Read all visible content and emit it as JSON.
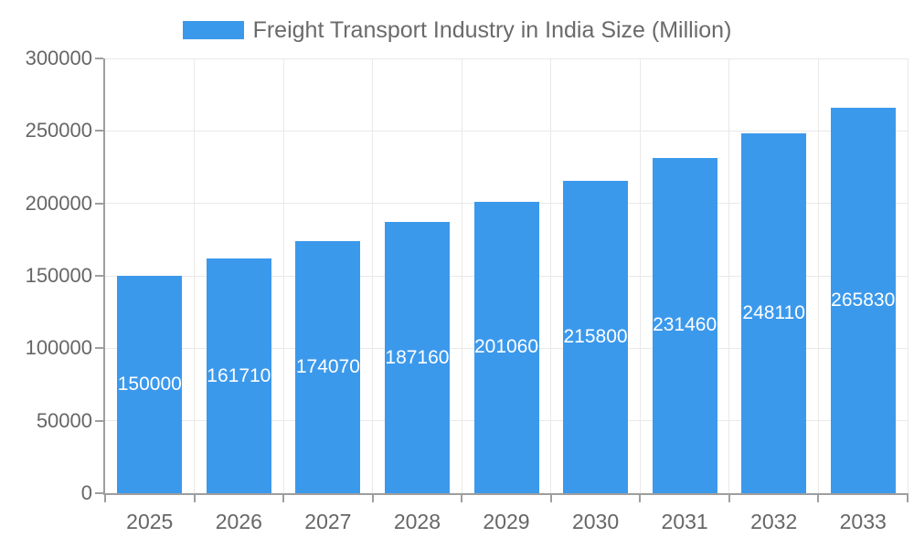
{
  "legend": {
    "swatch_color": "#3B99EC",
    "label": "Freight Transport Industry in India Size (Million)"
  },
  "colors": {
    "bar": "#3B99EC",
    "axis_line": "#9e9e9e",
    "gridline": "#e9e9e9",
    "axis_text": "#666666",
    "title_text": "#6a6a6a",
    "value_label": "#ffffff",
    "background": "#ffffff"
  },
  "chart_data": {
    "type": "bar",
    "title": "Freight Transport Industry in India Size (Million)",
    "categories": [
      "2025",
      "2026",
      "2027",
      "2028",
      "2029",
      "2030",
      "2031",
      "2032",
      "2033"
    ],
    "values": [
      150000,
      161710,
      174070,
      187160,
      201060,
      215800,
      231460,
      248110,
      265830
    ],
    "value_labels": [
      "150000",
      "161710",
      "174070",
      "187160",
      "201060",
      "215800",
      "231460",
      "248110",
      "265830"
    ],
    "xlabel": "",
    "ylabel": "",
    "ylim": [
      0,
      300000
    ],
    "y_tick_step": 50000,
    "y_tick_labels": [
      "0",
      "50000",
      "100000",
      "150000",
      "200000",
      "250000",
      "300000"
    ],
    "grid": true,
    "legend_position": "top-center",
    "value_label_position": "inside-center",
    "bar_color": "#3B99EC",
    "value_label_color": "#ffffff"
  }
}
